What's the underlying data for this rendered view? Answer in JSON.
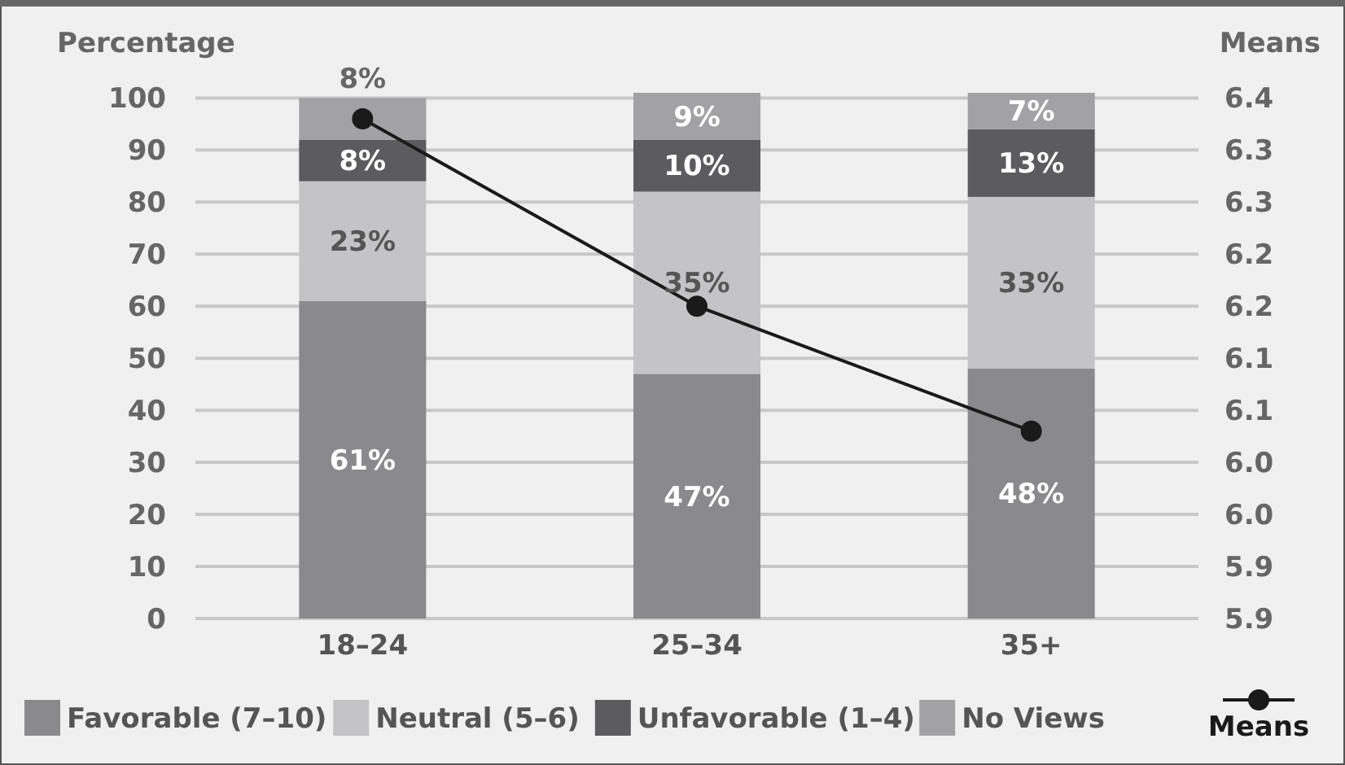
{
  "chart_data": {
    "type": "bar",
    "stacked": true,
    "ylabel": "Percentage",
    "y2label": "Means",
    "categories": [
      "18–24",
      "25–34",
      "35+"
    ],
    "series": [
      {
        "name": "Favorable (7–10)",
        "color": "#8a8a8c",
        "values": [
          61,
          47,
          48
        ],
        "value_labels": [
          "61%",
          "47%",
          "48%"
        ]
      },
      {
        "name": "Neutral (5–6)",
        "color": "#c4c4c6",
        "values": [
          23,
          35,
          33
        ],
        "value_labels": [
          "23%",
          "35%",
          "33%"
        ]
      },
      {
        "name": "Unfavorable (1–4)",
        "color": "#5c5c5e",
        "values": [
          8,
          10,
          13
        ],
        "value_labels": [
          "8%",
          "10%",
          "13%"
        ]
      },
      {
        "name": "No Views",
        "color": "#a2a2a4",
        "values": [
          8,
          9,
          7
        ],
        "value_labels": [
          "8%",
          "9%",
          "7%"
        ]
      },
      {
        "name": "Means",
        "type": "line",
        "axis": "y2",
        "color": "#1a1a1a",
        "marker": "circle",
        "values": [
          6.33,
          6.15,
          6.03
        ]
      }
    ],
    "ylim": [
      0,
      101
    ],
    "yticks": [
      0,
      10,
      20,
      30,
      40,
      50,
      60,
      70,
      80,
      90,
      100
    ],
    "y2lim": [
      5.85,
      6.355
    ],
    "y2ticks": [
      {
        "value": 5.85,
        "label": "5.9"
      },
      {
        "value": 5.9,
        "label": "5.9"
      },
      {
        "value": 5.95,
        "label": "6.0"
      },
      {
        "value": 6.0,
        "label": "6.0"
      },
      {
        "value": 6.05,
        "label": "6.1"
      },
      {
        "value": 6.1,
        "label": "6.1"
      },
      {
        "value": 6.15,
        "label": "6.2"
      },
      {
        "value": 6.2,
        "label": "6.2"
      },
      {
        "value": 6.25,
        "label": "6.3"
      },
      {
        "value": 6.3,
        "label": "6.3"
      },
      {
        "value": 6.35,
        "label": "6.4"
      }
    ],
    "grid": "y",
    "legend": "bottom"
  }
}
